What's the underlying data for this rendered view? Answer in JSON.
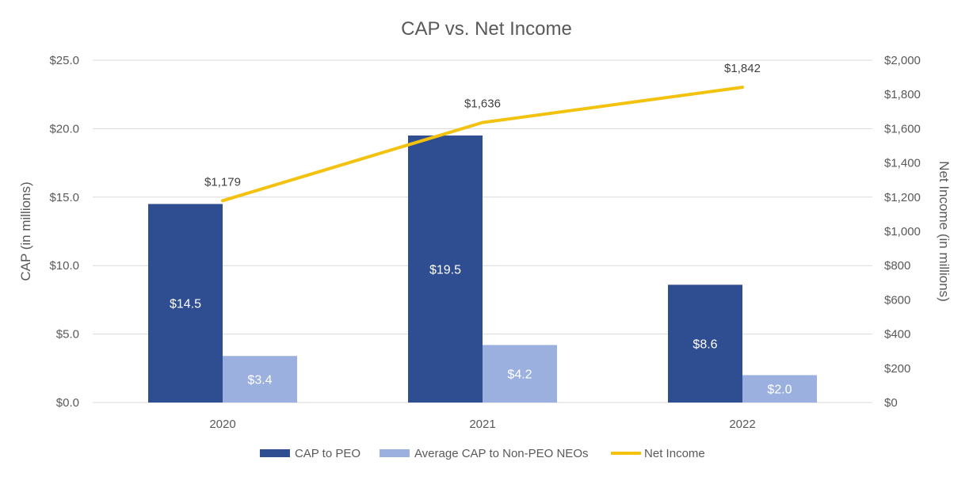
{
  "chart_data": {
    "type": "bar",
    "title": "CAP vs. Net Income",
    "categories": [
      "2020",
      "2021",
      "2022"
    ],
    "ylabel": "CAP (in millions)",
    "y2label": "Net Income (in millions)",
    "ylim": [
      0,
      25
    ],
    "y2lim": [
      0,
      2000
    ],
    "y_ticks": [
      "$0.0",
      "$5.0",
      "$10.0",
      "$15.0",
      "$20.0",
      "$25.0"
    ],
    "y_tick_values": [
      0,
      5,
      10,
      15,
      20,
      25
    ],
    "y2_ticks": [
      "$0",
      "$200",
      "$400",
      "$600",
      "$800",
      "$1,000",
      "$1,200",
      "$1,400",
      "$1,600",
      "$1,800",
      "$2,000"
    ],
    "y2_tick_values": [
      0,
      200,
      400,
      600,
      800,
      1000,
      1200,
      1400,
      1600,
      1800,
      2000
    ],
    "grid": true,
    "legend_position": "bottom",
    "series": [
      {
        "name": "CAP to PEO",
        "type": "bar",
        "axis": "left",
        "color": "#2f4d91",
        "values": [
          14.5,
          19.5,
          8.6
        ],
        "labels": [
          "$14.5",
          "$19.5",
          "$8.6"
        ]
      },
      {
        "name": "Average CAP to Non-PEO NEOs",
        "type": "bar",
        "axis": "left",
        "color": "#9bb0de",
        "values": [
          3.4,
          4.2,
          2.0
        ],
        "labels": [
          "$3.4",
          "$4.2",
          "$2.0"
        ]
      },
      {
        "name": "Net Income",
        "type": "line",
        "axis": "right",
        "color": "#f2c20f",
        "values": [
          1179,
          1636,
          1842
        ],
        "labels": [
          "$1,179",
          "$1,636",
          "$1,842"
        ]
      }
    ]
  }
}
